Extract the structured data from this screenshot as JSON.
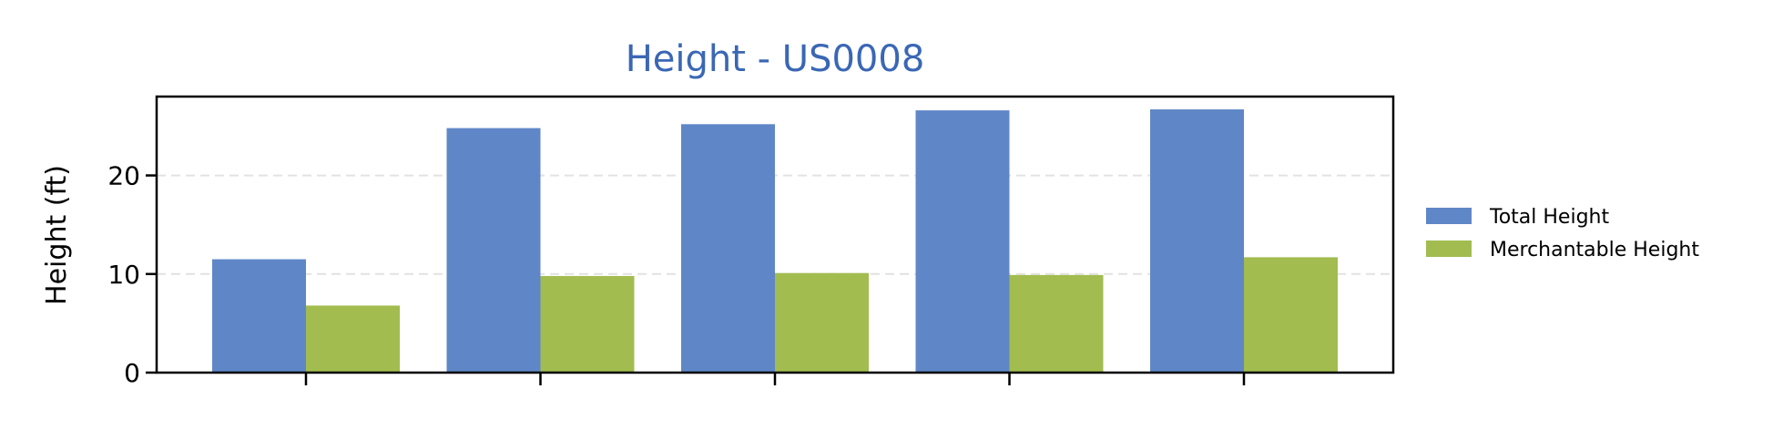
{
  "chart_data": {
    "type": "bar",
    "title": "Height - US0008",
    "xlabel": "",
    "ylabel": "Height (ft)",
    "categories": [
      "",
      "",
      "",
      "",
      ""
    ],
    "series": [
      {
        "name": "Total Height",
        "values": [
          11.5,
          24.8,
          25.2,
          26.6,
          26.7
        ]
      },
      {
        "name": "Merchantable Height",
        "values": [
          6.8,
          9.8,
          10.1,
          9.9,
          11.7
        ]
      }
    ],
    "ylim": [
      0,
      28
    ],
    "yticks": [
      0,
      10,
      20
    ],
    "grid": true,
    "legend_position": "right"
  },
  "colors": {
    "title": "#3a67b5",
    "total": "#5f87c7",
    "merch": "#a2bc4f",
    "grid": "#e2e2e2"
  }
}
